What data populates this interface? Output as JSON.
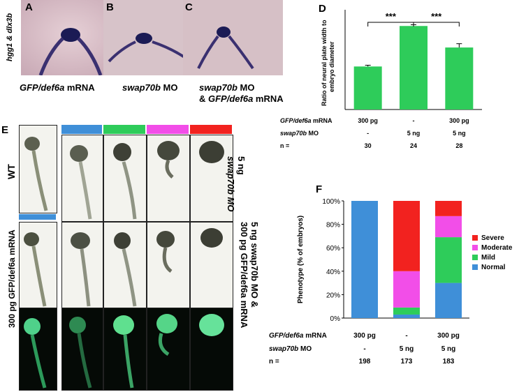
{
  "panel_letters": {
    "A": "A",
    "B": "B",
    "C": "C",
    "D": "D",
    "E": "E",
    "F": "F"
  },
  "panelA": {
    "ylabel": "hgg1 & dlx3b"
  },
  "captions": {
    "a_gene": "GFP/def6a",
    "a_rest": " mRNA",
    "b_gene": "swap70b",
    "b_rest": " MO",
    "c_line1_gene": "swap70b",
    "c_line1_rest": " MO",
    "c_line2_prefix": "& ",
    "c_line2_gene": "GFP/def6a",
    "c_line2_rest": " mRNA"
  },
  "panelD": {
    "ylabel_line1": "Ratio of neural plate width to",
    "ylabel_line2": "embryo diameter",
    "sig_left": "***",
    "sig_right": "***",
    "rows": [
      {
        "label_gene": "GFP/def6a",
        "label_rest": " mRNA",
        "values": [
          "300 pg",
          "-",
          "300 pg"
        ]
      },
      {
        "label_gene": "swap70b",
        "label_rest": " MO",
        "values": [
          "-",
          "5 ng",
          "5 ng"
        ]
      },
      {
        "label_gene": "",
        "label_rest": "n =",
        "values": [
          "30",
          "24",
          "28"
        ]
      }
    ]
  },
  "panelE": {
    "wt_label": "WT",
    "right_top_line1": "5 ng",
    "right_top_line2": "swap70b MO",
    "right_bottom_line1": "5 ng swap70b MO &",
    "right_bottom_line2": "300 pg GFP/def6a mRNA",
    "left_bottom": "300 pg GFP/def6a mRNA",
    "phenotype_bar_colors": [
      "#3f8fd8",
      "#2ecc5a",
      "#f24ee8",
      "#f2221f"
    ]
  },
  "panelF": {
    "ylabel": "Phenotype (% of embryos)",
    "rows": [
      {
        "label_gene": "GFP/def6a",
        "label_rest": " mRNA",
        "values": [
          "300 pg",
          "-",
          "300 pg"
        ]
      },
      {
        "label_gene": "swap70b",
        "label_rest": " MO",
        "values": [
          "-",
          "5 ng",
          "5 ng"
        ]
      },
      {
        "label_gene": "",
        "label_rest": "n =",
        "values": [
          "198",
          "173",
          "183"
        ]
      }
    ]
  },
  "chart_data": [
    {
      "type": "bar",
      "title": "",
      "ylabel": "Ratio of neural plate width to embryo diameter",
      "categories": [
        "GFP/def6a mRNA",
        "swap70b MO",
        "swap70b MO & GFP/def6a mRNA"
      ],
      "values": [
        0.34,
        0.66,
        0.49
      ],
      "errors": [
        0.01,
        0.01,
        0.03
      ],
      "ylim": [
        0,
        0.7
      ],
      "color": "#2ecc5a",
      "significance": [
        {
          "between": [
            0,
            1
          ],
          "label": "***"
        },
        {
          "between": [
            1,
            2
          ],
          "label": "***"
        }
      ]
    },
    {
      "type": "bar",
      "stacked": true,
      "ylabel": "Phenotype (% of embryos)",
      "categories": [
        "GFP/def6a mRNA",
        "swap70b MO",
        "swap70b MO & GFP/def6a mRNA"
      ],
      "yticks": [
        "0%",
        "20%",
        "40%",
        "60%",
        "80%",
        "100%"
      ],
      "ylim": [
        0,
        100
      ],
      "legend_position": "right",
      "series": [
        {
          "name": "Normal",
          "color": "#3f8fd8",
          "values": [
            100,
            3,
            30
          ]
        },
        {
          "name": "Mild",
          "color": "#2ecc5a",
          "values": [
            0,
            6,
            39
          ]
        },
        {
          "name": "Moderate",
          "color": "#f24ee8",
          "values": [
            0,
            31,
            18
          ]
        },
        {
          "name": "Severe",
          "color": "#f2221f",
          "values": [
            0,
            60,
            13
          ]
        }
      ]
    }
  ]
}
